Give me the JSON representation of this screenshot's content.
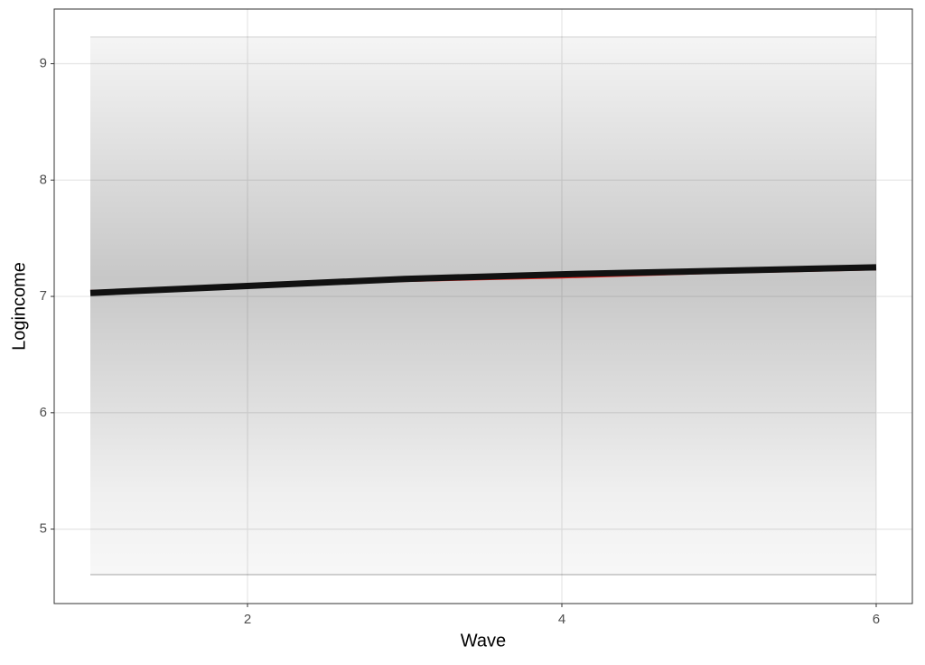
{
  "chart_data": {
    "type": "line",
    "x_label": "Wave",
    "y_label": "Logincome",
    "x": [
      1,
      2,
      3,
      4,
      5,
      6
    ],
    "series": [
      {
        "color": "#e0201b",
        "width": 1.5,
        "values": [
          7.05,
          7.09,
          7.13,
          7.16,
          7.2,
          7.23
        ]
      },
      {
        "color": "#111111",
        "width": 7,
        "values": [
          7.03,
          7.09,
          7.15,
          7.19,
          7.22,
          7.25
        ]
      }
    ],
    "xlim": [
      0.77,
      6.23
    ],
    "xticks": [
      2,
      4,
      6
    ],
    "ylim": [
      4.36,
      9.47
    ],
    "yticks": [
      5,
      6,
      7,
      8,
      9
    ],
    "grid": true
  }
}
